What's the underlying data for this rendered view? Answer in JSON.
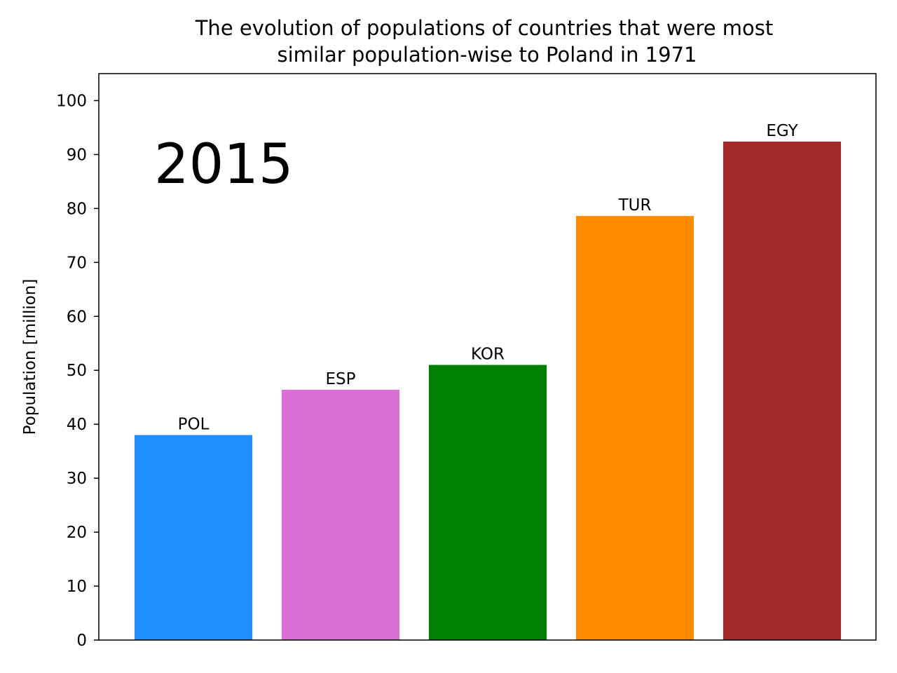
{
  "chart_data": {
    "type": "bar",
    "title_lines": [
      "The evolution of populations of countries that were most",
      "similar population-wise to Poland in 1971"
    ],
    "ylabel": "Population [million]",
    "xlabel": "",
    "annotation": "2015",
    "ylim": [
      0,
      105
    ],
    "yticks": [
      0,
      10,
      20,
      30,
      40,
      50,
      60,
      70,
      80,
      90,
      100
    ],
    "categories": [
      "POL",
      "ESP",
      "KOR",
      "TUR",
      "EGY"
    ],
    "values": [
      38.0,
      46.4,
      51.0,
      78.6,
      92.4
    ],
    "colors": [
      "#1e90ff",
      "#da70d6",
      "#008000",
      "#ff8c00",
      "#a52a2a"
    ],
    "grid": false,
    "legend": "none"
  }
}
